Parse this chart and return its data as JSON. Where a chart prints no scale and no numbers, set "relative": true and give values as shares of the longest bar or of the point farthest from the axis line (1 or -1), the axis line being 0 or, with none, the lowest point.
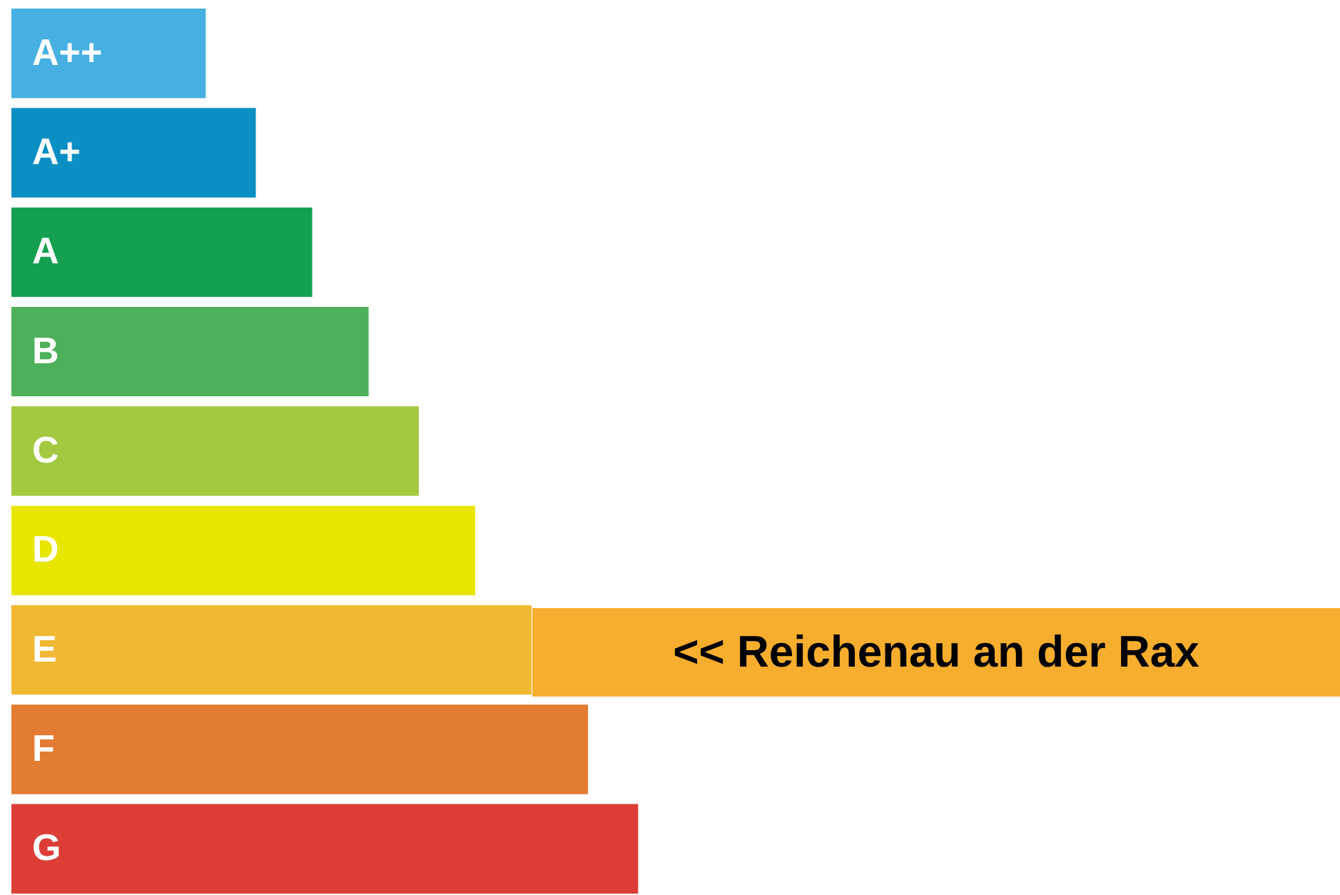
{
  "chart_data": {
    "type": "bar",
    "orientation": "horizontal",
    "relative": true,
    "categories": [
      "A++",
      "A+",
      "A",
      "B",
      "C",
      "D",
      "E",
      "F",
      "G"
    ],
    "values": [
      0.31,
      0.39,
      0.48,
      0.57,
      0.65,
      0.74,
      0.83,
      0.92,
      1
    ],
    "colors": [
      "#45b0e1",
      "#0a8fc4",
      "#14a050",
      "#4db05a",
      "#a3c940",
      "#e8e600",
      "#f0b833",
      "#e47b33",
      "#dc3d36"
    ],
    "annotations": [
      "<< Reichenau an der Rax"
    ]
  }
}
